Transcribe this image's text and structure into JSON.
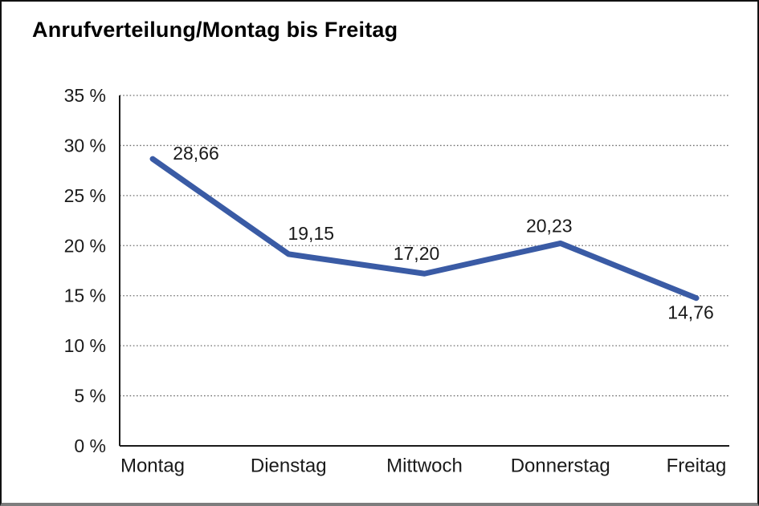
{
  "chart_data": {
    "type": "line",
    "title": "Anrufverteilung/Montag bis Freitag",
    "categories": [
      "Montag",
      "Dienstag",
      "Mittwoch",
      "Donnerstag",
      "Freitag"
    ],
    "series": [
      {
        "name": "Anrufverteilung",
        "values": [
          28.66,
          19.15,
          17.2,
          20.23,
          14.76
        ],
        "data_labels": [
          "28,66",
          "19,15",
          "17,20",
          "20,23",
          "14,76"
        ]
      }
    ],
    "xlabel": "",
    "ylabel": "",
    "ylim": [
      0,
      35
    ],
    "y_tick_step": 5,
    "y_tick_labels": [
      "0 %",
      "5 %",
      "10 %",
      "15 %",
      "20 %",
      "25 %",
      "30 %",
      "35 %"
    ],
    "grid": "horizontal-dotted",
    "legend_position": "none",
    "colors": {
      "line": "#3A5BA5",
      "text": "#1a1a1a",
      "gridline": "#6e6e6e",
      "axis": "#1a1a1a",
      "background": "#ffffff",
      "frame_border": "#111111",
      "frame_bottom_border": "#7d7d7d"
    }
  }
}
